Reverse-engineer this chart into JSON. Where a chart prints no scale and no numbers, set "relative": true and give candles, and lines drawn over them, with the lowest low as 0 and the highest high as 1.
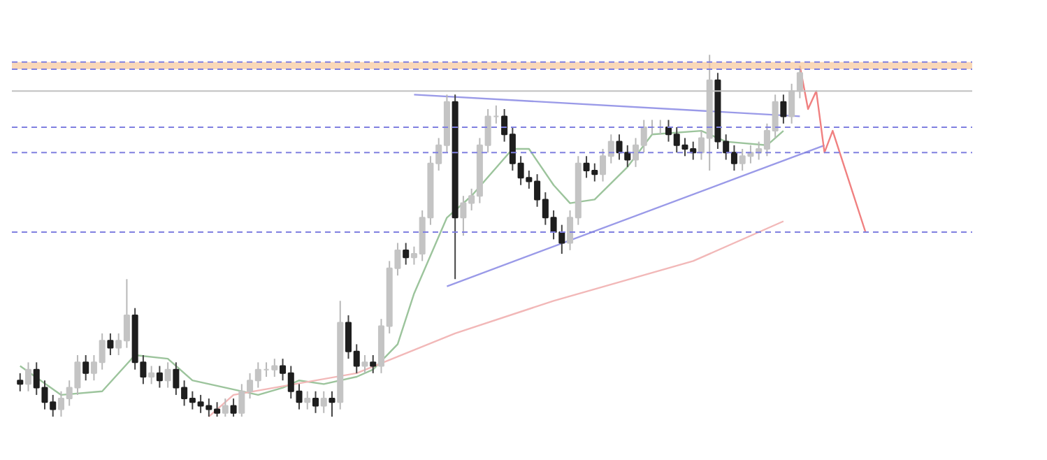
{
  "chart_data": {
    "type": "candlestick",
    "relative": true,
    "tick_labels": false,
    "grid": false,
    "categories": [
      null,
      null,
      null,
      null,
      null,
      null,
      null,
      null,
      null,
      null,
      null,
      null,
      null,
      null,
      null,
      null,
      null,
      null,
      null,
      null,
      null,
      null,
      null,
      null,
      null,
      null,
      null,
      null,
      null,
      null,
      null,
      null,
      null,
      null,
      null,
      null,
      null,
      null,
      null,
      null,
      null,
      null,
      null,
      null,
      null,
      null,
      null,
      null,
      null,
      null,
      null,
      null,
      null,
      null,
      null,
      null,
      null,
      null,
      null,
      null,
      null,
      null,
      null,
      null,
      null,
      null,
      null,
      null,
      null,
      null,
      null,
      null,
      null,
      null,
      null,
      null,
      null,
      null,
      null,
      null,
      null,
      null,
      null,
      null,
      null,
      null,
      null,
      null,
      null,
      null,
      null,
      null,
      null,
      null,
      null,
      null,
      null,
      null,
      null,
      null,
      null,
      null,
      null,
      null
    ],
    "ohlc": [
      [
        0.1,
        0.12,
        0.07,
        0.09
      ],
      [
        0.09,
        0.15,
        0.07,
        0.13
      ],
      [
        0.13,
        0.15,
        0.06,
        0.08
      ],
      [
        0.08,
        0.1,
        0.02,
        0.04
      ],
      [
        0.04,
        0.06,
        0.0,
        0.02
      ],
      [
        0.02,
        0.07,
        0.0,
        0.05
      ],
      [
        0.05,
        0.1,
        0.03,
        0.08
      ],
      [
        0.08,
        0.17,
        0.06,
        0.15
      ],
      [
        0.15,
        0.17,
        0.1,
        0.12
      ],
      [
        0.12,
        0.17,
        0.1,
        0.15
      ],
      [
        0.15,
        0.23,
        0.13,
        0.21
      ],
      [
        0.21,
        0.23,
        0.17,
        0.19
      ],
      [
        0.19,
        0.23,
        0.17,
        0.21
      ],
      [
        0.21,
        0.38,
        0.19,
        0.28
      ],
      [
        0.28,
        0.3,
        0.13,
        0.15
      ],
      [
        0.15,
        0.17,
        0.09,
        0.11
      ],
      [
        0.11,
        0.14,
        0.09,
        0.12
      ],
      [
        0.12,
        0.14,
        0.08,
        0.1
      ],
      [
        0.1,
        0.15,
        0.08,
        0.13
      ],
      [
        0.13,
        0.15,
        0.06,
        0.08
      ],
      [
        0.08,
        0.1,
        0.03,
        0.05
      ],
      [
        0.05,
        0.07,
        0.02,
        0.04
      ],
      [
        0.04,
        0.06,
        0.01,
        0.03
      ],
      [
        0.03,
        0.05,
        0.0,
        0.02
      ],
      [
        0.02,
        0.04,
        0.0,
        0.01
      ],
      [
        0.01,
        0.05,
        0.0,
        0.03
      ],
      [
        0.03,
        0.05,
        0.0,
        0.01
      ],
      [
        0.01,
        0.09,
        0.0,
        0.07
      ],
      [
        0.07,
        0.12,
        0.05,
        0.1
      ],
      [
        0.1,
        0.15,
        0.08,
        0.13
      ],
      [
        0.13,
        0.15,
        0.11,
        0.13
      ],
      [
        0.13,
        0.16,
        0.11,
        0.14
      ],
      [
        0.14,
        0.16,
        0.1,
        0.12
      ],
      [
        0.12,
        0.14,
        0.05,
        0.07
      ],
      [
        0.07,
        0.09,
        0.02,
        0.04
      ],
      [
        0.04,
        0.07,
        0.02,
        0.05
      ],
      [
        0.05,
        0.07,
        0.01,
        0.03
      ],
      [
        0.03,
        0.07,
        0.01,
        0.05
      ],
      [
        0.05,
        0.07,
        0.0,
        0.04
      ],
      [
        0.04,
        0.32,
        0.02,
        0.26
      ],
      [
        0.26,
        0.28,
        0.16,
        0.18
      ],
      [
        0.18,
        0.2,
        0.12,
        0.14
      ],
      [
        0.14,
        0.17,
        0.12,
        0.15
      ],
      [
        0.15,
        0.17,
        0.12,
        0.14
      ],
      [
        0.14,
        0.27,
        0.12,
        0.25
      ],
      [
        0.25,
        0.43,
        0.23,
        0.41
      ],
      [
        0.41,
        0.48,
        0.39,
        0.46
      ],
      [
        0.46,
        0.48,
        0.42,
        0.44
      ],
      [
        0.44,
        0.47,
        0.42,
        0.45
      ],
      [
        0.45,
        0.57,
        0.43,
        0.55
      ],
      [
        0.55,
        0.72,
        0.53,
        0.7
      ],
      [
        0.7,
        0.77,
        0.68,
        0.75
      ],
      [
        0.75,
        0.89,
        0.73,
        0.87
      ],
      [
        0.87,
        0.89,
        0.38,
        0.55
      ],
      [
        0.55,
        0.61,
        0.5,
        0.59
      ],
      [
        0.59,
        0.63,
        0.57,
        0.61
      ],
      [
        0.61,
        0.77,
        0.59,
        0.75
      ],
      [
        0.75,
        0.85,
        0.73,
        0.83
      ],
      [
        0.83,
        0.86,
        0.81,
        0.83
      ],
      [
        0.83,
        0.85,
        0.76,
        0.78
      ],
      [
        0.78,
        0.8,
        0.68,
        0.7
      ],
      [
        0.7,
        0.72,
        0.64,
        0.66
      ],
      [
        0.66,
        0.68,
        0.63,
        0.65
      ],
      [
        0.65,
        0.67,
        0.58,
        0.6
      ],
      [
        0.6,
        0.62,
        0.53,
        0.55
      ],
      [
        0.55,
        0.57,
        0.49,
        0.51
      ],
      [
        0.51,
        0.53,
        0.45,
        0.48
      ],
      [
        0.48,
        0.57,
        0.46,
        0.55
      ],
      [
        0.55,
        0.72,
        0.53,
        0.7
      ],
      [
        0.7,
        0.72,
        0.66,
        0.68
      ],
      [
        0.68,
        0.7,
        0.65,
        0.67
      ],
      [
        0.67,
        0.74,
        0.65,
        0.72
      ],
      [
        0.72,
        0.78,
        0.7,
        0.76
      ],
      [
        0.76,
        0.78,
        0.71,
        0.73
      ],
      [
        0.73,
        0.75,
        0.69,
        0.71
      ],
      [
        0.71,
        0.77,
        0.69,
        0.75
      ],
      [
        0.75,
        0.82,
        0.73,
        0.8
      ],
      [
        0.8,
        0.82,
        0.78,
        0.8
      ],
      [
        0.8,
        0.82,
        0.78,
        0.8
      ],
      [
        0.8,
        0.82,
        0.76,
        0.78
      ],
      [
        0.78,
        0.8,
        0.73,
        0.75
      ],
      [
        0.75,
        0.77,
        0.72,
        0.74
      ],
      [
        0.74,
        0.76,
        0.71,
        0.73
      ],
      [
        0.73,
        0.79,
        0.71,
        0.77
      ],
      [
        0.77,
        1.0,
        0.68,
        0.93
      ],
      [
        0.93,
        0.95,
        0.74,
        0.76
      ],
      [
        0.76,
        0.78,
        0.71,
        0.73
      ],
      [
        0.73,
        0.75,
        0.68,
        0.7
      ],
      [
        0.7,
        0.74,
        0.68,
        0.72
      ],
      [
        0.72,
        0.75,
        0.7,
        0.73
      ],
      [
        0.73,
        0.76,
        0.71,
        0.74
      ],
      [
        0.74,
        0.81,
        0.72,
        0.79
      ],
      [
        0.79,
        0.89,
        0.77,
        0.87
      ],
      [
        0.87,
        0.89,
        0.81,
        0.83
      ],
      [
        0.83,
        0.92,
        0.81,
        0.9
      ],
      [
        0.9,
        0.97,
        0.88,
        0.95
      ],
      null,
      null,
      null,
      null,
      null,
      null,
      null,
      null
    ],
    "series": [
      {
        "type": "line",
        "color": "#9cc49c",
        "values": [
          0.14,
          null,
          null,
          null,
          null,
          0.06,
          null,
          null,
          null,
          null,
          0.07,
          null,
          null,
          null,
          0.17,
          null,
          null,
          null,
          0.16,
          null,
          null,
          0.1,
          null,
          null,
          null,
          null,
          null,
          null,
          null,
          0.06,
          null,
          null,
          0.08,
          null,
          0.1,
          null,
          null,
          0.09,
          null,
          null,
          null,
          0.11,
          null,
          0.13,
          null,
          null,
          0.2,
          null,
          0.34,
          null,
          null,
          null,
          0.55,
          null,
          null,
          0.61,
          null,
          null,
          null,
          null,
          0.74,
          null,
          0.74,
          null,
          null,
          0.64,
          null,
          0.59,
          null,
          null,
          0.6,
          null,
          null,
          null,
          0.69,
          null,
          null,
          0.78,
          null,
          null,
          null,
          null,
          null,
          0.79,
          null,
          null,
          0.76,
          null,
          null,
          null,
          null,
          0.75,
          null,
          0.79,
          null,
          null,
          null,
          null,
          null,
          null,
          null,
          null,
          null,
          null
        ]
      },
      {
        "type": "line",
        "color": "#f2b8b8",
        "values": [
          null,
          null,
          null,
          null,
          null,
          null,
          null,
          null,
          null,
          null,
          null,
          null,
          null,
          null,
          null,
          null,
          null,
          null,
          null,
          null,
          null,
          null,
          null,
          0,
          null,
          null,
          0.06,
          null,
          null,
          null,
          null,
          null,
          null,
          null,
          null,
          null,
          null,
          null,
          null,
          null,
          null,
          0.12,
          null,
          null,
          null,
          null,
          null,
          null,
          null,
          null,
          null,
          null,
          null,
          0.23,
          null,
          null,
          null,
          null,
          null,
          null,
          null,
          null,
          null,
          null,
          null,
          0.32,
          null,
          null,
          null,
          null,
          null,
          null,
          null,
          null,
          null,
          null,
          null,
          null,
          null,
          null,
          null,
          null,
          0.43,
          null,
          null,
          null,
          null,
          null,
          null,
          null,
          null,
          null,
          null,
          0.54,
          null,
          null,
          null,
          null,
          null,
          null,
          null,
          null,
          null,
          null
        ]
      },
      {
        "type": "line",
        "color": "#9a9ae8",
        "values": [
          null,
          null,
          null,
          null,
          null,
          null,
          null,
          null,
          null,
          null,
          null,
          null,
          null,
          null,
          null,
          null,
          null,
          null,
          null,
          null,
          null,
          null,
          null,
          null,
          null,
          null,
          null,
          null,
          null,
          null,
          null,
          null,
          null,
          null,
          null,
          null,
          null,
          null,
          null,
          null,
          null,
          null,
          null,
          null,
          null,
          null,
          null,
          null,
          0.89,
          null,
          null,
          null,
          null,
          null,
          null,
          null,
          null,
          null,
          null,
          null,
          null,
          null,
          null,
          null,
          null,
          null,
          null,
          null,
          null,
          null,
          null,
          null,
          null,
          null,
          null,
          null,
          null,
          null,
          null,
          null,
          null,
          null,
          null,
          null,
          null,
          null,
          null,
          null,
          null,
          null,
          null,
          null,
          null,
          null,
          null,
          0.83,
          null,
          null,
          null,
          null,
          null,
          null,
          null,
          null
        ]
      },
      {
        "type": "line",
        "color": "#9a9ae8",
        "values": [
          null,
          null,
          null,
          null,
          null,
          null,
          null,
          null,
          null,
          null,
          null,
          null,
          null,
          null,
          null,
          null,
          null,
          null,
          null,
          null,
          null,
          null,
          null,
          null,
          null,
          null,
          null,
          null,
          null,
          null,
          null,
          null,
          null,
          null,
          null,
          null,
          null,
          null,
          null,
          null,
          null,
          null,
          null,
          null,
          null,
          null,
          null,
          null,
          null,
          null,
          null,
          null,
          0.36,
          null,
          null,
          null,
          null,
          null,
          null,
          null,
          null,
          null,
          null,
          null,
          null,
          null,
          null,
          null,
          null,
          null,
          null,
          null,
          null,
          null,
          null,
          null,
          null,
          null,
          null,
          null,
          null,
          null,
          null,
          null,
          null,
          null,
          null,
          null,
          null,
          null,
          null,
          null,
          null,
          null,
          null,
          null,
          null,
          null,
          0.75,
          null,
          null,
          null,
          null,
          null
        ]
      },
      {
        "type": "line",
        "color": "#f08080",
        "values": [
          null,
          null,
          null,
          null,
          null,
          null,
          null,
          null,
          null,
          null,
          null,
          null,
          null,
          null,
          null,
          null,
          null,
          null,
          null,
          null,
          null,
          null,
          null,
          null,
          null,
          null,
          null,
          null,
          null,
          null,
          null,
          null,
          null,
          null,
          null,
          null,
          null,
          null,
          null,
          null,
          null,
          null,
          null,
          null,
          null,
          null,
          null,
          null,
          null,
          null,
          null,
          null,
          null,
          null,
          null,
          null,
          null,
          null,
          null,
          null,
          null,
          null,
          null,
          null,
          null,
          null,
          null,
          null,
          null,
          null,
          null,
          null,
          null,
          null,
          null,
          null,
          null,
          null,
          null,
          null,
          null,
          null,
          null,
          null,
          null,
          null,
          null,
          null,
          null,
          null,
          null,
          null,
          null,
          null,
          null,
          0.97,
          0.85,
          0.9,
          0.73,
          0.79,
          null,
          null,
          null,
          0.51
        ]
      }
    ],
    "ref_lines": [
      {
        "axis": "y",
        "value": 0.98,
        "color": "#8080e0",
        "line_style": "dashed"
      },
      {
        "axis": "y",
        "value": 0.96,
        "color": "#8080e0",
        "line_style": "dashed"
      },
      {
        "axis": "y",
        "value": 0.9,
        "color": "#c0c0c0",
        "line_style": "solid"
      },
      {
        "axis": "y",
        "value": 0.8,
        "color": "#8080e0",
        "line_style": "dashed"
      },
      {
        "axis": "y",
        "value": 0.73,
        "color": "#8080e0",
        "line_style": "dashed"
      },
      {
        "axis": "y",
        "value": 0.51,
        "color": "#8080e0",
        "line_style": "dashed"
      }
    ],
    "bands": [
      {
        "axis": "y",
        "from": 0.96,
        "to": 0.98,
        "color": "#f8c89a"
      }
    ]
  }
}
